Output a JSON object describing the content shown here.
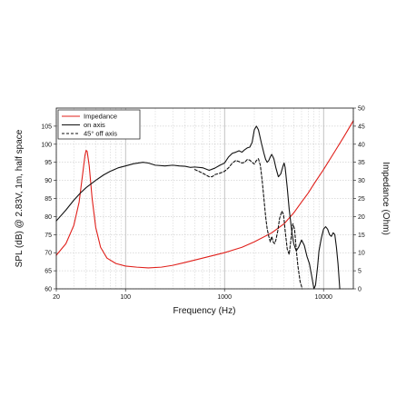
{
  "chart_data": {
    "type": "line",
    "xlabel": "Frequency (Hz)",
    "ylabel_left": "SPL (dB) @ 2.83V, 1m, half space",
    "ylabel_right": "Impedance (Ohm)",
    "xscale": "log",
    "xlim": [
      20,
      20000
    ],
    "ylim_left": [
      60,
      110
    ],
    "ylim_right": [
      0,
      50
    ],
    "x_ticks": [
      20,
      100,
      1000,
      10000
    ],
    "x_tick_labels": [
      "20",
      "100",
      "1000",
      "10000"
    ],
    "y_left_ticks": [
      60,
      65,
      70,
      75,
      80,
      85,
      90,
      95,
      100,
      105
    ],
    "y_left_tick_labels": [
      "60",
      "65",
      "70",
      "75",
      "80",
      "85",
      "90",
      "95",
      "100",
      "105"
    ],
    "y_right_ticks": [
      0,
      5,
      10,
      15,
      20,
      25,
      30,
      35,
      40,
      45,
      50
    ],
    "y_right_tick_labels": [
      "0",
      "5",
      "10",
      "15",
      "20",
      "25",
      "30",
      "35",
      "40",
      "45",
      "50"
    ],
    "grid": true,
    "legend_position": "top-left",
    "series": [
      {
        "name": "Impedance",
        "color": "#e0201b",
        "style": "solid",
        "axis": "right",
        "points": [
          [
            20,
            9.3
          ],
          [
            25,
            12.5
          ],
          [
            30,
            17.5
          ],
          [
            34,
            24.0
          ],
          [
            37,
            32.0
          ],
          [
            39,
            37.0
          ],
          [
            40,
            38.3
          ],
          [
            41,
            38.0
          ],
          [
            43,
            34.0
          ],
          [
            46,
            25.0
          ],
          [
            50,
            17.0
          ],
          [
            56,
            11.5
          ],
          [
            65,
            8.5
          ],
          [
            80,
            7.0
          ],
          [
            100,
            6.3
          ],
          [
            130,
            6.0
          ],
          [
            170,
            5.8
          ],
          [
            230,
            6.0
          ],
          [
            300,
            6.5
          ],
          [
            400,
            7.3
          ],
          [
            600,
            8.5
          ],
          [
            1000,
            10.0
          ],
          [
            1500,
            11.5
          ],
          [
            2000,
            13.0
          ],
          [
            3000,
            15.5
          ],
          [
            4000,
            18.0
          ],
          [
            5000,
            21.0
          ],
          [
            6000,
            24.0
          ],
          [
            7000,
            26.5
          ],
          [
            8000,
            29.0
          ],
          [
            10000,
            33.0
          ],
          [
            13000,
            38.0
          ],
          [
            16000,
            42.0
          ],
          [
            20000,
            46.5
          ]
        ]
      },
      {
        "name": "on axis",
        "color": "#111111",
        "style": "solid",
        "axis": "left",
        "points": [
          [
            20,
            78.8
          ],
          [
            25,
            81.8
          ],
          [
            30,
            84.5
          ],
          [
            35,
            86.5
          ],
          [
            40,
            88.0
          ],
          [
            50,
            90.0
          ],
          [
            60,
            91.5
          ],
          [
            70,
            92.5
          ],
          [
            85,
            93.5
          ],
          [
            100,
            94.0
          ],
          [
            120,
            94.6
          ],
          [
            150,
            95.0
          ],
          [
            170,
            94.8
          ],
          [
            200,
            94.2
          ],
          [
            250,
            94.0
          ],
          [
            300,
            94.2
          ],
          [
            350,
            94.0
          ],
          [
            400,
            93.9
          ],
          [
            450,
            93.6
          ],
          [
            500,
            93.7
          ],
          [
            600,
            93.5
          ],
          [
            700,
            92.8
          ],
          [
            800,
            93.4
          ],
          [
            900,
            94.2
          ],
          [
            1000,
            94.8
          ],
          [
            1100,
            96.5
          ],
          [
            1200,
            97.5
          ],
          [
            1300,
            97.8
          ],
          [
            1400,
            98.2
          ],
          [
            1500,
            97.8
          ],
          [
            1600,
            98.5
          ],
          [
            1700,
            99.0
          ],
          [
            1800,
            99.2
          ],
          [
            1900,
            100.5
          ],
          [
            2000,
            104.0
          ],
          [
            2100,
            105.0
          ],
          [
            2200,
            104.0
          ],
          [
            2350,
            100.5
          ],
          [
            2500,
            97.5
          ],
          [
            2600,
            95.8
          ],
          [
            2700,
            95.0
          ],
          [
            2800,
            95.5
          ],
          [
            2900,
            96.5
          ],
          [
            3000,
            97.2
          ],
          [
            3150,
            96.0
          ],
          [
            3300,
            93.5
          ],
          [
            3500,
            91.0
          ],
          [
            3700,
            91.8
          ],
          [
            3900,
            94.0
          ],
          [
            4000,
            94.8
          ],
          [
            4100,
            93.5
          ],
          [
            4300,
            88.0
          ],
          [
            4500,
            82.0
          ],
          [
            4800,
            75.5
          ],
          [
            5000,
            72.5
          ],
          [
            5300,
            70.5
          ],
          [
            5600,
            71.5
          ],
          [
            6000,
            73.5
          ],
          [
            6400,
            72.0
          ],
          [
            6800,
            69.0
          ],
          [
            7200,
            67.0
          ],
          [
            7600,
            63.5
          ],
          [
            8000,
            60.0
          ],
          [
            8300,
            61.0
          ],
          [
            8700,
            66.0
          ],
          [
            9000,
            70.5
          ],
          [
            9500,
            74.0
          ],
          [
            10000,
            76.5
          ],
          [
            10500,
            77.2
          ],
          [
            11000,
            76.5
          ],
          [
            11500,
            75.0
          ],
          [
            12000,
            74.5
          ],
          [
            12500,
            75.5
          ],
          [
            13000,
            75.0
          ],
          [
            13500,
            71.5
          ],
          [
            14000,
            67.0
          ],
          [
            14600,
            60.0
          ]
        ]
      },
      {
        "name": "45° off axis",
        "color": "#111111",
        "style": "dashed",
        "axis": "left",
        "points": [
          [
            500,
            93.0
          ],
          [
            550,
            92.5
          ],
          [
            600,
            92.0
          ],
          [
            650,
            91.5
          ],
          [
            700,
            91.0
          ],
          [
            750,
            91.0
          ],
          [
            800,
            91.6
          ],
          [
            900,
            92.0
          ],
          [
            1000,
            92.5
          ],
          [
            1100,
            93.5
          ],
          [
            1200,
            94.8
          ],
          [
            1300,
            95.5
          ],
          [
            1400,
            95.2
          ],
          [
            1500,
            94.8
          ],
          [
            1600,
            95.0
          ],
          [
            1700,
            95.8
          ],
          [
            1800,
            95.6
          ],
          [
            1900,
            95.0
          ],
          [
            2000,
            94.5
          ],
          [
            2100,
            95.5
          ],
          [
            2200,
            96.0
          ],
          [
            2300,
            94.2
          ],
          [
            2400,
            90.0
          ],
          [
            2500,
            85.0
          ],
          [
            2600,
            80.0
          ],
          [
            2700,
            76.5
          ],
          [
            2800,
            74.5
          ],
          [
            2900,
            73.0
          ],
          [
            3000,
            74.5
          ],
          [
            3100,
            73.0
          ],
          [
            3200,
            72.5
          ],
          [
            3300,
            73.5
          ],
          [
            3450,
            76.0
          ],
          [
            3600,
            79.5
          ],
          [
            3800,
            81.5
          ],
          [
            3950,
            80.5
          ],
          [
            4100,
            76.0
          ],
          [
            4300,
            71.0
          ],
          [
            4500,
            69.5
          ],
          [
            4700,
            74.0
          ],
          [
            4900,
            78.0
          ],
          [
            5100,
            76.5
          ],
          [
            5300,
            71.0
          ],
          [
            5500,
            66.5
          ],
          [
            5800,
            62.0
          ],
          [
            6100,
            60.0
          ]
        ]
      }
    ]
  }
}
